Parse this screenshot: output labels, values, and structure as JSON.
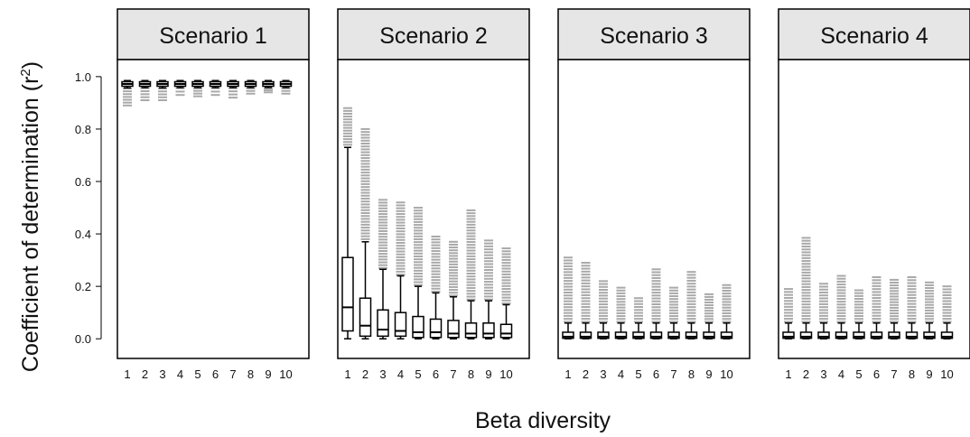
{
  "chart_data": {
    "type": "boxplot",
    "xlabel": "Beta diversity",
    "ylabel": "Coefficient of determination (r",
    "ylabel_sup": "2",
    "ylabel_close": ")",
    "ylim": [
      -0.075,
      1.065
    ],
    "yticks": [
      0.0,
      0.2,
      0.4,
      0.6,
      0.8,
      1.0
    ],
    "ytick_labels": [
      "0.0",
      "0.2",
      "0.4",
      "0.6",
      "0.8",
      "1.0"
    ],
    "categories": [
      "1",
      "2",
      "3",
      "4",
      "5",
      "6",
      "7",
      "8",
      "9",
      "10"
    ],
    "colors": {
      "box": "#000000",
      "outlier": "#a9a9a9",
      "strip": "#e6e6e6"
    },
    "panels": [
      {
        "title": "Scenario 1",
        "boxes": [
          {
            "min": 0.957,
            "q1": 0.966,
            "median": 0.972,
            "q3": 0.978,
            "max": 0.985,
            "outlier_min": 0.89,
            "outlier_max": 0.955
          },
          {
            "min": 0.958,
            "q1": 0.966,
            "median": 0.972,
            "q3": 0.978,
            "max": 0.985,
            "outlier_min": 0.91,
            "outlier_max": 0.956
          },
          {
            "min": 0.957,
            "q1": 0.966,
            "median": 0.972,
            "q3": 0.978,
            "max": 0.985,
            "outlier_min": 0.91,
            "outlier_max": 0.955
          },
          {
            "min": 0.958,
            "q1": 0.966,
            "median": 0.972,
            "q3": 0.978,
            "max": 0.985,
            "outlier_min": 0.93,
            "outlier_max": 0.956
          },
          {
            "min": 0.958,
            "q1": 0.966,
            "median": 0.972,
            "q3": 0.978,
            "max": 0.985,
            "outlier_min": 0.925,
            "outlier_max": 0.956
          },
          {
            "min": 0.958,
            "q1": 0.966,
            "median": 0.972,
            "q3": 0.978,
            "max": 0.985,
            "outlier_min": 0.93,
            "outlier_max": 0.956
          },
          {
            "min": 0.958,
            "q1": 0.966,
            "median": 0.972,
            "q3": 0.978,
            "max": 0.985,
            "outlier_min": 0.92,
            "outlier_max": 0.956
          },
          {
            "min": 0.958,
            "q1": 0.966,
            "median": 0.972,
            "q3": 0.978,
            "max": 0.985,
            "outlier_min": 0.935,
            "outlier_max": 0.956
          },
          {
            "min": 0.958,
            "q1": 0.966,
            "median": 0.972,
            "q3": 0.978,
            "max": 0.985,
            "outlier_min": 0.94,
            "outlier_max": 0.956
          },
          {
            "min": 0.958,
            "q1": 0.966,
            "median": 0.972,
            "q3": 0.978,
            "max": 0.985,
            "outlier_min": 0.935,
            "outlier_max": 0.956
          }
        ]
      },
      {
        "title": "Scenario 2",
        "boxes": [
          {
            "min": 0.0,
            "q1": 0.03,
            "median": 0.12,
            "q3": 0.31,
            "max": 0.73,
            "outlier_min": 0.74,
            "outlier_max": 0.88
          },
          {
            "min": 0.0,
            "q1": 0.01,
            "median": 0.05,
            "q3": 0.155,
            "max": 0.37,
            "outlier_min": 0.38,
            "outlier_max": 0.8
          },
          {
            "min": 0.0,
            "q1": 0.01,
            "median": 0.035,
            "q3": 0.11,
            "max": 0.265,
            "outlier_min": 0.27,
            "outlier_max": 0.53
          },
          {
            "min": 0.0,
            "q1": 0.01,
            "median": 0.03,
            "q3": 0.1,
            "max": 0.24,
            "outlier_min": 0.245,
            "outlier_max": 0.52
          },
          {
            "min": 0.0,
            "q1": 0.005,
            "median": 0.025,
            "q3": 0.085,
            "max": 0.2,
            "outlier_min": 0.205,
            "outlier_max": 0.5
          },
          {
            "min": 0.0,
            "q1": 0.005,
            "median": 0.025,
            "q3": 0.075,
            "max": 0.175,
            "outlier_min": 0.18,
            "outlier_max": 0.39
          },
          {
            "min": 0.0,
            "q1": 0.005,
            "median": 0.02,
            "q3": 0.07,
            "max": 0.16,
            "outlier_min": 0.165,
            "outlier_max": 0.37
          },
          {
            "min": 0.0,
            "q1": 0.005,
            "median": 0.02,
            "q3": 0.06,
            "max": 0.145,
            "outlier_min": 0.15,
            "outlier_max": 0.49
          },
          {
            "min": 0.0,
            "q1": 0.005,
            "median": 0.02,
            "q3": 0.06,
            "max": 0.145,
            "outlier_min": 0.15,
            "outlier_max": 0.375
          },
          {
            "min": 0.0,
            "q1": 0.005,
            "median": 0.02,
            "q3": 0.055,
            "max": 0.13,
            "outlier_min": 0.135,
            "outlier_max": 0.345
          }
        ]
      },
      {
        "title": "Scenario 3",
        "boxes": [
          {
            "min": 0.0,
            "q1": 0.002,
            "median": 0.008,
            "q3": 0.025,
            "max": 0.06,
            "outlier_min": 0.065,
            "outlier_max": 0.31
          },
          {
            "min": 0.0,
            "q1": 0.002,
            "median": 0.008,
            "q3": 0.025,
            "max": 0.06,
            "outlier_min": 0.065,
            "outlier_max": 0.29
          },
          {
            "min": 0.0,
            "q1": 0.002,
            "median": 0.008,
            "q3": 0.025,
            "max": 0.06,
            "outlier_min": 0.065,
            "outlier_max": 0.22
          },
          {
            "min": 0.0,
            "q1": 0.002,
            "median": 0.008,
            "q3": 0.025,
            "max": 0.06,
            "outlier_min": 0.065,
            "outlier_max": 0.195
          },
          {
            "min": 0.0,
            "q1": 0.002,
            "median": 0.008,
            "q3": 0.025,
            "max": 0.06,
            "outlier_min": 0.065,
            "outlier_max": 0.155
          },
          {
            "min": 0.0,
            "q1": 0.002,
            "median": 0.008,
            "q3": 0.025,
            "max": 0.06,
            "outlier_min": 0.065,
            "outlier_max": 0.265
          },
          {
            "min": 0.0,
            "q1": 0.002,
            "median": 0.008,
            "q3": 0.025,
            "max": 0.06,
            "outlier_min": 0.065,
            "outlier_max": 0.195
          },
          {
            "min": 0.0,
            "q1": 0.002,
            "median": 0.008,
            "q3": 0.025,
            "max": 0.06,
            "outlier_min": 0.065,
            "outlier_max": 0.255
          },
          {
            "min": 0.0,
            "q1": 0.002,
            "median": 0.008,
            "q3": 0.025,
            "max": 0.06,
            "outlier_min": 0.065,
            "outlier_max": 0.17
          },
          {
            "min": 0.0,
            "q1": 0.002,
            "median": 0.008,
            "q3": 0.025,
            "max": 0.06,
            "outlier_min": 0.065,
            "outlier_max": 0.205
          }
        ]
      },
      {
        "title": "Scenario 4",
        "boxes": [
          {
            "min": 0.0,
            "q1": 0.002,
            "median": 0.008,
            "q3": 0.025,
            "max": 0.06,
            "outlier_min": 0.065,
            "outlier_max": 0.19
          },
          {
            "min": 0.0,
            "q1": 0.002,
            "median": 0.008,
            "q3": 0.025,
            "max": 0.06,
            "outlier_min": 0.065,
            "outlier_max": 0.385
          },
          {
            "min": 0.0,
            "q1": 0.002,
            "median": 0.008,
            "q3": 0.025,
            "max": 0.06,
            "outlier_min": 0.065,
            "outlier_max": 0.21
          },
          {
            "min": 0.0,
            "q1": 0.002,
            "median": 0.008,
            "q3": 0.025,
            "max": 0.06,
            "outlier_min": 0.065,
            "outlier_max": 0.24
          },
          {
            "min": 0.0,
            "q1": 0.002,
            "median": 0.008,
            "q3": 0.025,
            "max": 0.06,
            "outlier_min": 0.065,
            "outlier_max": 0.185
          },
          {
            "min": 0.0,
            "q1": 0.002,
            "median": 0.008,
            "q3": 0.025,
            "max": 0.06,
            "outlier_min": 0.065,
            "outlier_max": 0.235
          },
          {
            "min": 0.0,
            "q1": 0.002,
            "median": 0.008,
            "q3": 0.025,
            "max": 0.06,
            "outlier_min": 0.065,
            "outlier_max": 0.225
          },
          {
            "min": 0.0,
            "q1": 0.002,
            "median": 0.008,
            "q3": 0.025,
            "max": 0.06,
            "outlier_min": 0.065,
            "outlier_max": 0.235
          },
          {
            "min": 0.0,
            "q1": 0.002,
            "median": 0.008,
            "q3": 0.025,
            "max": 0.06,
            "outlier_min": 0.065,
            "outlier_max": 0.215
          },
          {
            "min": 0.0,
            "q1": 0.002,
            "median": 0.008,
            "q3": 0.025,
            "max": 0.06,
            "outlier_min": 0.065,
            "outlier_max": 0.2
          }
        ]
      }
    ]
  }
}
